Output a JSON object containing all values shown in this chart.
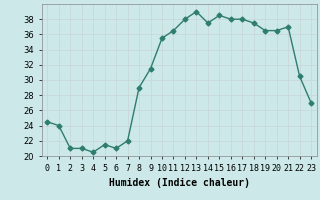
{
  "x": [
    0,
    1,
    2,
    3,
    4,
    5,
    6,
    7,
    8,
    9,
    10,
    11,
    12,
    13,
    14,
    15,
    16,
    17,
    18,
    19,
    20,
    21,
    22,
    23
  ],
  "y": [
    24.5,
    24.0,
    21.0,
    21.0,
    20.5,
    21.5,
    21.0,
    22.0,
    29.0,
    31.5,
    35.5,
    36.5,
    38.0,
    39.0,
    37.5,
    38.5,
    38.0,
    38.0,
    37.5,
    36.5,
    36.5,
    37.0,
    30.5,
    27.0
  ],
  "line_color": "#2e7d6e",
  "marker": "D",
  "markersize": 2.5,
  "linewidth": 1.0,
  "bg_color": "#cce8e8",
  "grid_color": "#b0d8d8",
  "xlabel": "Humidex (Indice chaleur)",
  "xlim": [
    -0.5,
    23.5
  ],
  "ylim": [
    20,
    40
  ],
  "yticks": [
    20,
    22,
    24,
    26,
    28,
    30,
    32,
    34,
    36,
    38
  ],
  "xtick_labels": [
    "0",
    "1",
    "2",
    "3",
    "4",
    "5",
    "6",
    "7",
    "8",
    "9",
    "10",
    "11",
    "12",
    "13",
    "14",
    "15",
    "16",
    "17",
    "18",
    "19",
    "20",
    "21",
    "22",
    "23"
  ],
  "tick_fontsize": 6,
  "xlabel_fontsize": 7
}
